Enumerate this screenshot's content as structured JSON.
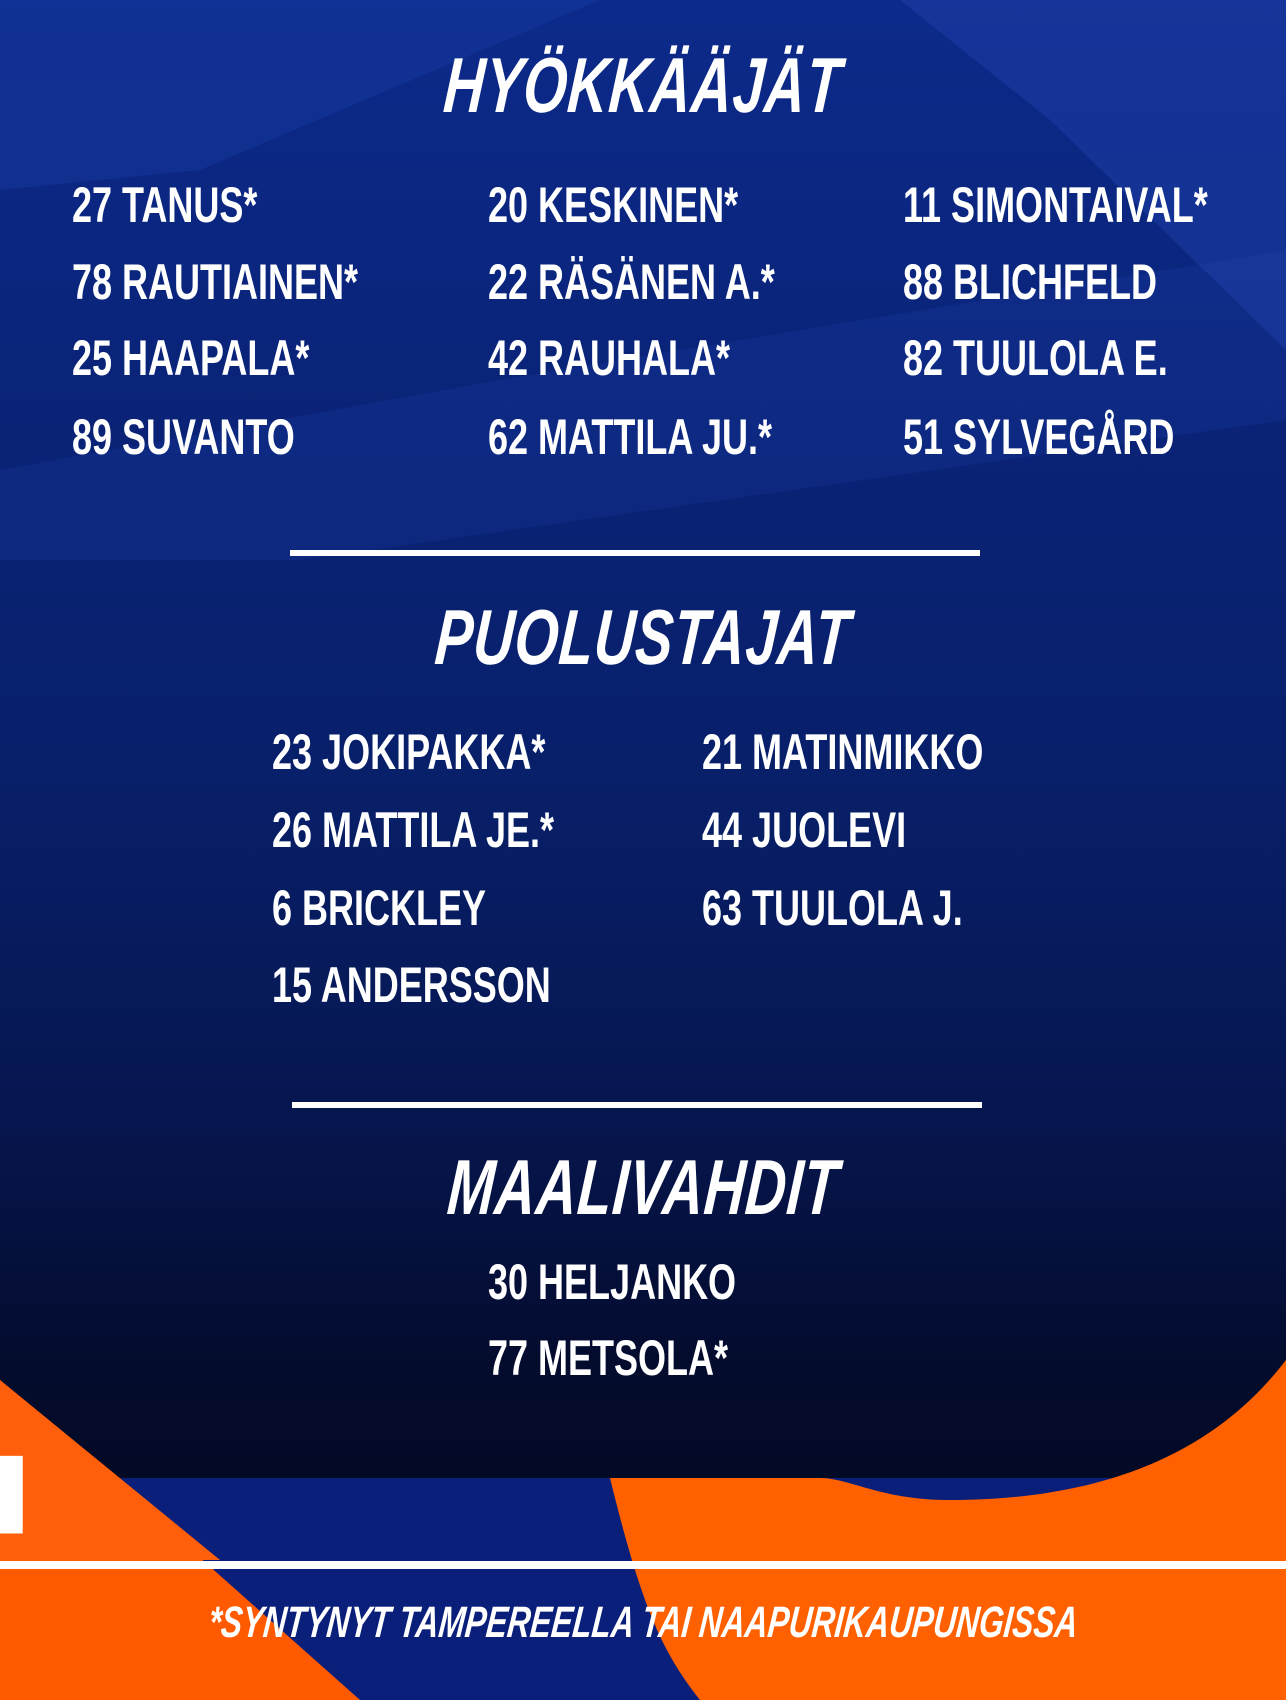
{
  "colors": {
    "navy": "#0a2377",
    "dark_navy": "#030a25",
    "orange": "#ff5a00",
    "white": "#ffffff"
  },
  "forwards": {
    "heading": "HYÖKKÄÄJÄT",
    "columns": [
      [
        "27 TANUS*",
        "78 RAUTIAINEN*",
        "25 HAAPALA*",
        "89 SUVANTO"
      ],
      [
        "20 KESKINEN*",
        "22 RÄSÄNEN A.*",
        "42 RAUHALA*",
        "62 MATTILA JU.*"
      ],
      [
        "11 SIMONTAIVAL*",
        "88 BLICHFELD",
        "82 TUULOLA E.",
        "51 SYLVEGÅRD"
      ]
    ]
  },
  "defense": {
    "heading": "PUOLUSTAJAT",
    "columns": [
      [
        "23 JOKIPAKKA*",
        "26 MATTILA JE.*",
        "6 BRICKLEY",
        "15 ANDERSSON"
      ],
      [
        "21 MATINMIKKO",
        "44 JUOLEVI",
        "63 TUULOLA J."
      ]
    ]
  },
  "goalies": {
    "heading": "MAALIVAHDIT",
    "players": [
      "30 HELJANKO",
      "77 METSOLA*"
    ]
  },
  "footnote": "*SYNTYNYT TAMPEREELLA TAI NAAPURIKAUPUNGISSA"
}
